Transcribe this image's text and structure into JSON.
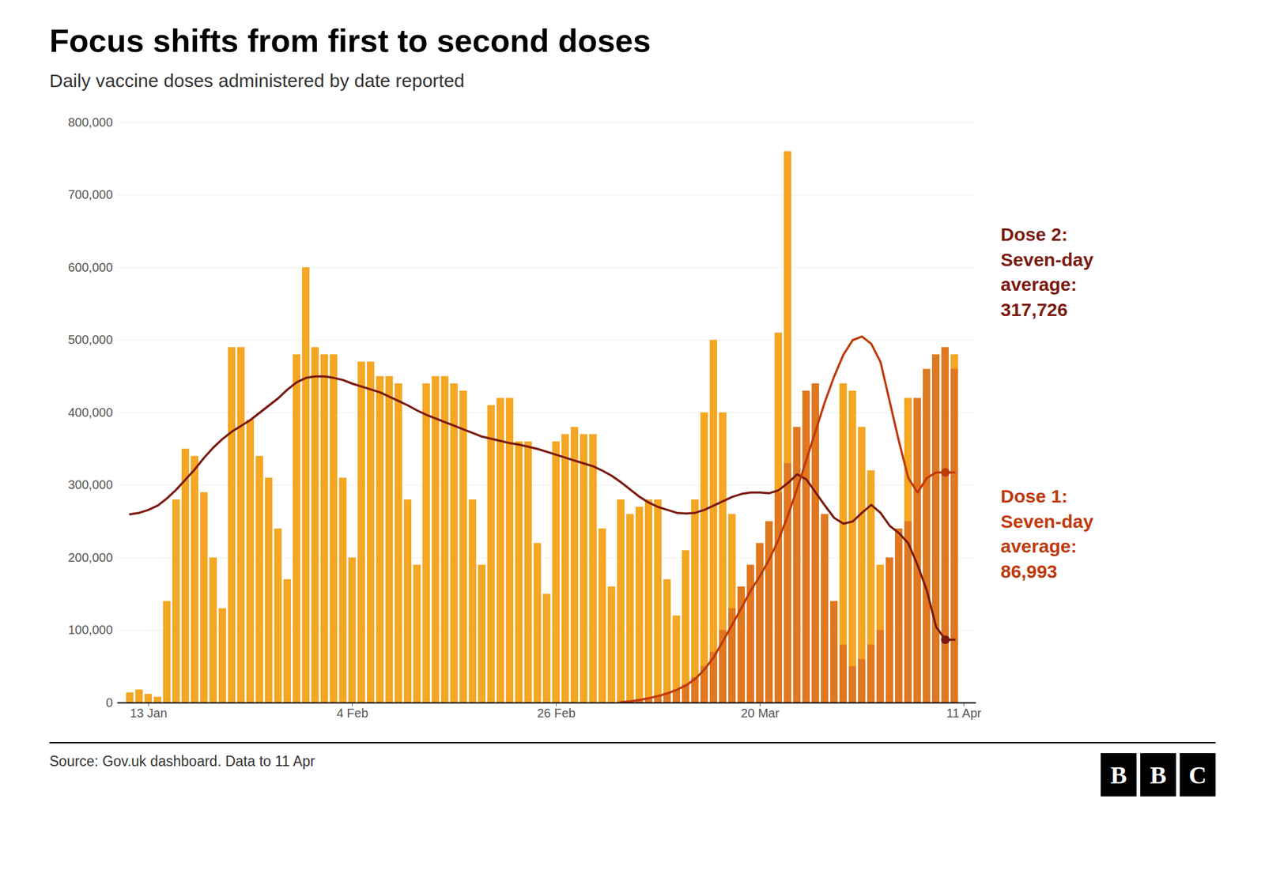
{
  "chart_data": {
    "type": "bar",
    "title": "Focus shifts from first to second doses",
    "subtitle": "Daily vaccine doses administered by date reported",
    "source": "Source: Gov.uk dashboard. Data to 11 Apr",
    "logo": "BBC",
    "annotations": [
      {
        "text": "Dose 2:\nSeven-day\naverage:\n317,726",
        "color": "#7b1a10"
      },
      {
        "text": "Dose 1:\nSeven-day\naverage:\n86,993",
        "color": "#c0390a"
      }
    ],
    "categories": [
      null,
      null,
      "13 Jan",
      null,
      null,
      null,
      null,
      null,
      null,
      null,
      null,
      null,
      null,
      null,
      null,
      null,
      null,
      null,
      null,
      null,
      null,
      null,
      null,
      null,
      "4 Feb",
      null,
      null,
      null,
      null,
      null,
      null,
      null,
      null,
      null,
      null,
      null,
      null,
      null,
      null,
      null,
      null,
      null,
      null,
      null,
      null,
      null,
      "26 Feb",
      null,
      null,
      null,
      null,
      null,
      null,
      null,
      null,
      null,
      null,
      null,
      null,
      null,
      null,
      null,
      null,
      null,
      null,
      null,
      null,
      null,
      "20 Mar",
      null,
      null,
      null,
      null,
      null,
      null,
      null,
      null,
      null,
      null,
      null,
      null,
      null,
      null,
      null,
      null,
      null,
      null,
      null,
      null,
      null,
      "11 Apr"
    ],
    "ylim": [
      0,
      800000
    ],
    "yticks": [
      0,
      {
        "value": 100000,
        "label": "100,000"
      },
      {
        "value": 200000,
        "label": "200,000"
      },
      {
        "value": 300000,
        "label": "300,000"
      },
      {
        "value": 400000,
        "label": "400,000"
      },
      {
        "value": 500000,
        "label": "500,000"
      },
      {
        "value": 600000,
        "label": "600,000"
      },
      {
        "value": 700000,
        "label": "700,000"
      },
      {
        "value": 800000,
        "label": "800,000"
      }
    ],
    "grid": true,
    "stacked": false,
    "series": [
      {
        "type": "bar",
        "color": "#f5a623",
        "values": [
          14000,
          18000,
          12000,
          8000,
          140000,
          280000,
          350000,
          340000,
          290000,
          200000,
          130000,
          490000,
          490000,
          390000,
          340000,
          310000,
          240000,
          170000,
          480000,
          600000,
          490000,
          480000,
          480000,
          310000,
          200000,
          470000,
          470000,
          450000,
          450000,
          440000,
          280000,
          190000,
          440000,
          450000,
          450000,
          440000,
          430000,
          280000,
          190000,
          410000,
          420000,
          420000,
          360000,
          360000,
          220000,
          150000,
          360000,
          370000,
          380000,
          370000,
          370000,
          240000,
          160000,
          280000,
          260000,
          270000,
          280000,
          280000,
          170000,
          120000,
          210000,
          280000,
          400000,
          500000,
          400000,
          260000,
          120000,
          100000,
          130000,
          200000,
          510000,
          760000,
          250000,
          150000,
          80000,
          40000,
          60000,
          440000,
          430000,
          380000,
          320000,
          190000,
          100000,
          50000,
          420000,
          390000,
          410000,
          430000,
          470000,
          480000,
          0
        ]
      },
      {
        "type": "bar",
        "color": "#e07820",
        "values": [
          0,
          0,
          0,
          0,
          0,
          0,
          0,
          0,
          0,
          0,
          0,
          0,
          0,
          0,
          0,
          0,
          0,
          0,
          0,
          0,
          0,
          0,
          0,
          0,
          0,
          0,
          0,
          0,
          0,
          0,
          0,
          0,
          0,
          0,
          0,
          0,
          0,
          0,
          0,
          0,
          0,
          0,
          0,
          0,
          0,
          0,
          0,
          0,
          0,
          0,
          0,
          0,
          0,
          2000,
          3000,
          5000,
          7000,
          10000,
          14000,
          18000,
          25000,
          35000,
          50000,
          70000,
          100000,
          130000,
          160000,
          190000,
          220000,
          250000,
          290000,
          330000,
          380000,
          430000,
          440000,
          260000,
          140000,
          80000,
          50000,
          60000,
          80000,
          100000,
          200000,
          240000,
          250000,
          420000,
          460000,
          480000,
          490000,
          460000,
          0
        ]
      },
      {
        "type": "line",
        "color": "#7b1a10",
        "values": [
          260000,
          262000,
          266000,
          272000,
          282000,
          294000,
          308000,
          322000,
          338000,
          352000,
          364000,
          374000,
          382000,
          390000,
          400000,
          410000,
          420000,
          432000,
          442000,
          448000,
          450000,
          450000,
          448000,
          445000,
          440000,
          436000,
          432000,
          428000,
          422000,
          416000,
          410000,
          403000,
          397000,
          392000,
          387000,
          382000,
          377000,
          372000,
          367000,
          364000,
          361000,
          358000,
          356000,
          353000,
          350000,
          346000,
          342000,
          338000,
          334000,
          330000,
          326000,
          320000,
          313000,
          304000,
          294000,
          284000,
          276000,
          270000,
          266000,
          262000,
          261000,
          262000,
          266000,
          272000,
          278000,
          284000,
          288000,
          290000,
          290000,
          289000,
          293000,
          303000,
          315000,
          308000,
          290000,
          272000,
          255000,
          247000,
          250000,
          262000,
          273000,
          262000,
          244000,
          234000,
          220000,
          190000,
          155000,
          105000,
          86993,
          86993,
          null
        ]
      },
      {
        "type": "line",
        "color": "#c0390a",
        "values": [
          null,
          null,
          null,
          null,
          null,
          null,
          null,
          null,
          null,
          null,
          null,
          null,
          null,
          null,
          null,
          null,
          null,
          null,
          null,
          null,
          null,
          null,
          null,
          null,
          null,
          null,
          null,
          null,
          null,
          null,
          null,
          null,
          null,
          null,
          null,
          null,
          null,
          null,
          null,
          null,
          null,
          null,
          null,
          null,
          null,
          null,
          null,
          null,
          null,
          null,
          null,
          null,
          null,
          1000,
          2000,
          4000,
          6500,
          9500,
          13000,
          18000,
          24000,
          33000,
          46000,
          63000,
          85000,
          108000,
          131000,
          155000,
          175000,
          198000,
          225000,
          258000,
          295000,
          335000,
          375000,
          415000,
          450000,
          480000,
          500000,
          505000,
          495000,
          470000,
          415000,
          360000,
          310000,
          290000,
          310000,
          317726,
          317726,
          317726,
          null
        ]
      },
      {
        "type": "scatter",
        "marker": "circle",
        "color": "#c0390a",
        "values": [
          null,
          null,
          null,
          null,
          null,
          null,
          null,
          null,
          null,
          null,
          null,
          null,
          null,
          null,
          null,
          null,
          null,
          null,
          null,
          null,
          null,
          null,
          null,
          null,
          null,
          null,
          null,
          null,
          null,
          null,
          null,
          null,
          null,
          null,
          null,
          null,
          null,
          null,
          null,
          null,
          null,
          null,
          null,
          null,
          null,
          null,
          null,
          null,
          null,
          null,
          null,
          null,
          null,
          null,
          null,
          null,
          null,
          null,
          null,
          null,
          null,
          null,
          null,
          null,
          null,
          null,
          null,
          null,
          null,
          null,
          null,
          null,
          null,
          null,
          null,
          null,
          null,
          null,
          null,
          null,
          null,
          null,
          null,
          null,
          null,
          null,
          null,
          null,
          317726,
          null,
          null
        ]
      },
      {
        "type": "scatter",
        "marker": "circle",
        "color": "#7b1a10",
        "values": [
          null,
          null,
          null,
          null,
          null,
          null,
          null,
          null,
          null,
          null,
          null,
          null,
          null,
          null,
          null,
          null,
          null,
          null,
          null,
          null,
          null,
          null,
          null,
          null,
          null,
          null,
          null,
          null,
          null,
          null,
          null,
          null,
          null,
          null,
          null,
          null,
          null,
          null,
          null,
          null,
          null,
          null,
          null,
          null,
          null,
          null,
          null,
          null,
          null,
          null,
          null,
          null,
          null,
          null,
          null,
          null,
          null,
          null,
          null,
          null,
          null,
          null,
          null,
          null,
          null,
          null,
          null,
          null,
          null,
          null,
          null,
          null,
          null,
          null,
          null,
          null,
          null,
          null,
          null,
          null,
          null,
          null,
          null,
          null,
          null,
          null,
          null,
          null,
          86993,
          null,
          null
        ]
      }
    ]
  }
}
